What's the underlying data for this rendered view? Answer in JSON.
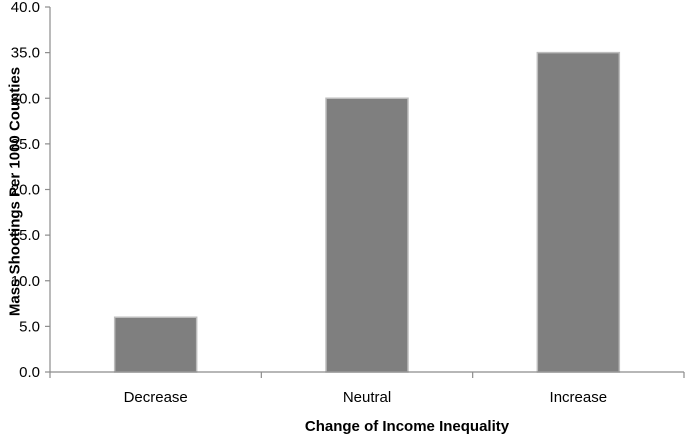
{
  "chart_data": {
    "type": "bar",
    "categories": [
      "Decrease",
      "Neutral",
      "Increase"
    ],
    "values": [
      6.0,
      30.0,
      35.0
    ],
    "title": "",
    "xlabel": "Change of Income Inequality",
    "ylabel": "Mass Shootings Per 1000 Counties",
    "ylim": [
      0,
      40
    ],
    "yticks": [
      "0.0",
      "5.0",
      "10.0",
      "15.0",
      "20.0",
      "25.0",
      "30.0",
      "35.0",
      "40.0"
    ],
    "grid": false,
    "bar_color": "#7f7f7f"
  }
}
